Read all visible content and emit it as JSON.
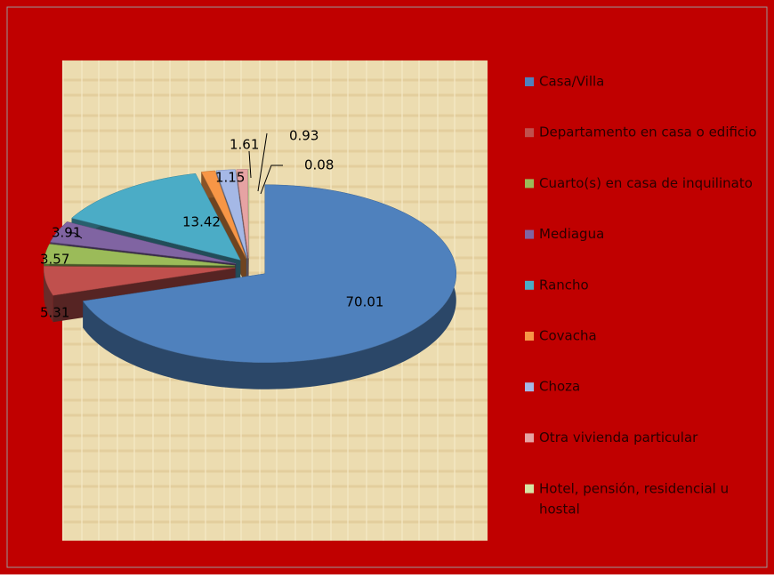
{
  "chart_data": {
    "type": "pie3d",
    "categories": [
      "Casa/Villa",
      "Departamento en casa o edificio",
      "Cuarto(s) en casa de inquilinato",
      "Mediagua",
      "Rancho",
      "Covacha",
      "Choza",
      "Otra vivienda particular",
      "Hotel, pensión, residencial u hostal"
    ],
    "values": [
      70.01,
      5.31,
      3.57,
      3.91,
      13.42,
      1.15,
      1.61,
      0.93,
      0.08
    ],
    "colors": [
      "#4f81bd",
      "#c0504d",
      "#9bbb59",
      "#8064a2",
      "#4bacc6",
      "#f79646",
      "#a5b8e6",
      "#e6a3a3",
      "#d7e4a4"
    ],
    "legend": "right"
  }
}
